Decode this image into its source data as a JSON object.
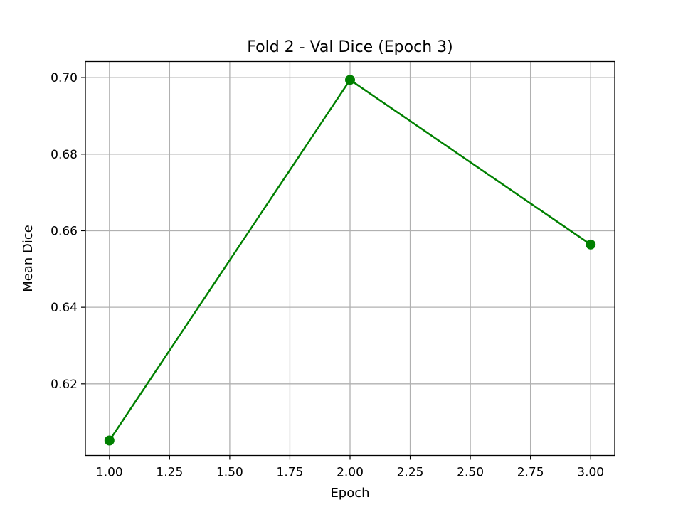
{
  "chart_data": {
    "type": "line",
    "title": "Fold 2 - Val Dice (Epoch 3)",
    "xlabel": "Epoch",
    "ylabel": "Mean Dice",
    "xlim": [
      0.9,
      3.1
    ],
    "ylim": [
      0.6013,
      0.7042
    ],
    "x_ticks": [
      1.0,
      1.25,
      1.5,
      1.75,
      2.0,
      2.25,
      2.5,
      2.75,
      3.0
    ],
    "x_tick_labels": [
      "1.00",
      "1.25",
      "1.50",
      "1.75",
      "2.00",
      "2.25",
      "2.50",
      "2.75",
      "3.00"
    ],
    "y_ticks": [
      0.62,
      0.64,
      0.66,
      0.68,
      0.7
    ],
    "y_tick_labels": [
      "0.62",
      "0.64",
      "0.66",
      "0.68",
      "0.70"
    ],
    "grid": true,
    "series": [
      {
        "color": "#008000",
        "marker": "circle",
        "points": [
          {
            "x": 1.0,
            "y": 0.6052
          },
          {
            "x": 2.0,
            "y": 0.6994
          },
          {
            "x": 3.0,
            "y": 0.6564
          }
        ]
      }
    ]
  }
}
